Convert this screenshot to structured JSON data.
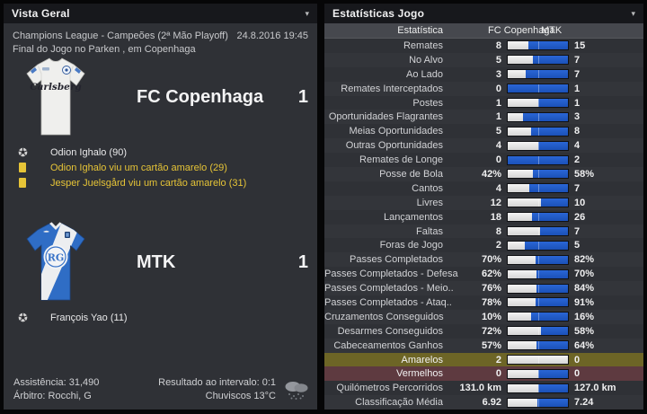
{
  "left_panel": {
    "title": "Vista Geral",
    "competition": "Champions League - Campeões (2ª Mão Playoff)",
    "datetime": "24.8.2016 19:45",
    "status_line": "Final do Jogo no Parken , em Copenhaga",
    "home_team": {
      "name": "FC Copenhaga",
      "score": "1",
      "events": [
        {
          "type": "goal",
          "text": "Odion Ighalo (90)"
        },
        {
          "type": "yellow",
          "text": "Odion Ighalo viu um cartão amarelo (29)"
        },
        {
          "type": "yellow",
          "text": "Jesper Juelsgård viu um cartão amarelo (31)"
        }
      ]
    },
    "away_team": {
      "name": "MTK",
      "score": "1",
      "events": [
        {
          "type": "goal",
          "text": "François Yao (11)"
        }
      ]
    },
    "footer": {
      "attendance": "Assistência: 31,490",
      "referee": "Árbitro: Rocchi, G",
      "halftime": "Resultado ao intervalo: 0:1",
      "weather": "Chuviscos 13°C"
    }
  },
  "stats_panel": {
    "title": "Estatísticas Jogo",
    "columns": {
      "stat": "Estatística",
      "home": "FC Copenhaga",
      "away": "MTK"
    },
    "colors": {
      "bar_blue": "#1b51b8",
      "bar_blue_light": "#2a66d6",
      "bar_gray": "#e2e2e2",
      "yellow_row_bg": "#6d6526",
      "red_row_bg": "#5e3a40",
      "card_yellow": "#e6c437"
    }
  },
  "chart_data": {
    "type": "table",
    "title": "Estatísticas Jogo",
    "series": [
      "FC Copenhaga",
      "MTK"
    ],
    "rows": [
      {
        "label": "Remates",
        "home": "8",
        "away": "15"
      },
      {
        "label": "No Alvo",
        "home": "5",
        "away": "7"
      },
      {
        "label": "Ao Lado",
        "home": "3",
        "away": "7"
      },
      {
        "label": "Remates Interceptados",
        "home": "0",
        "away": "1"
      },
      {
        "label": "Postes",
        "home": "1",
        "away": "1"
      },
      {
        "label": "Oportunidades Flagrantes",
        "home": "1",
        "away": "3"
      },
      {
        "label": "Meias Oportunidades",
        "home": "5",
        "away": "8"
      },
      {
        "label": "Outras Oportunidades",
        "home": "4",
        "away": "4"
      },
      {
        "label": "Remates de Longe",
        "home": "0",
        "away": "2"
      },
      {
        "label": "Posse de Bola",
        "home": "42%",
        "away": "58%"
      },
      {
        "label": "Cantos",
        "home": "4",
        "away": "7"
      },
      {
        "label": "Livres",
        "home": "12",
        "away": "10"
      },
      {
        "label": "Lançamentos",
        "home": "18",
        "away": "26"
      },
      {
        "label": "Faltas",
        "home": "8",
        "away": "7"
      },
      {
        "label": "Foras de Jogo",
        "home": "2",
        "away": "5"
      },
      {
        "label": "Passes Completados",
        "home": "70%",
        "away": "82%"
      },
      {
        "label": "Passes Completados - Defesa",
        "home": "62%",
        "away": "70%"
      },
      {
        "label": "Passes Completados - Meio..",
        "home": "76%",
        "away": "84%"
      },
      {
        "label": "Passes Completados - Ataq..",
        "home": "78%",
        "away": "91%"
      },
      {
        "label": "Cruzamentos Conseguidos",
        "home": "10%",
        "away": "16%"
      },
      {
        "label": "Desarmes Conseguidos",
        "home": "72%",
        "away": "58%"
      },
      {
        "label": "Cabeceamentos Ganhos",
        "home": "57%",
        "away": "64%"
      },
      {
        "label": "Amarelos",
        "home": "2",
        "away": "0",
        "highlight": "yellow"
      },
      {
        "label": "Vermelhos",
        "home": "0",
        "away": "0",
        "highlight": "red"
      },
      {
        "label": "Quilómetros Percorridos",
        "home": "131.0 km",
        "away": "127.0 km"
      },
      {
        "label": "Classificação Média",
        "home": "6.92",
        "away": "7.24"
      }
    ]
  }
}
